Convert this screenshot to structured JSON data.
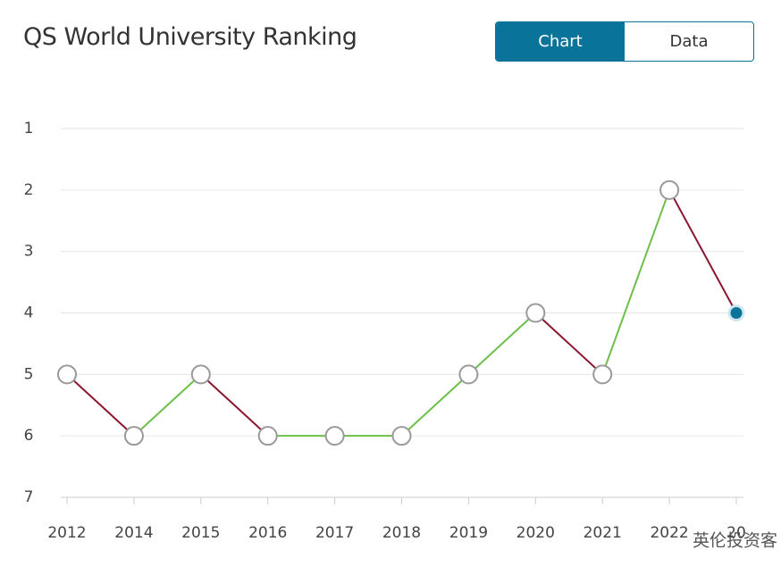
{
  "header": {
    "title": "QS World University Ranking",
    "tabs": [
      "Chart",
      "Data"
    ],
    "active_tab": 0
  },
  "chart_data": {
    "type": "line",
    "categories": [
      "2012",
      "2014",
      "2015",
      "2016",
      "2017",
      "2018",
      "2019",
      "2020",
      "2021",
      "2022",
      "20"
    ],
    "values": [
      5,
      6,
      5,
      6,
      6,
      6,
      5,
      4,
      5,
      2,
      4
    ],
    "ylim": [
      1,
      7
    ],
    "yticks": [
      1,
      2,
      3,
      4,
      5,
      6,
      7
    ],
    "y_reversed": true,
    "grid": true,
    "worse_color": "#8b1730",
    "better_color": "#6cbf4a",
    "marker_color": "#9a9a9a",
    "highlight_color": "#0a7399"
  },
  "watermark": "英伦投资客"
}
